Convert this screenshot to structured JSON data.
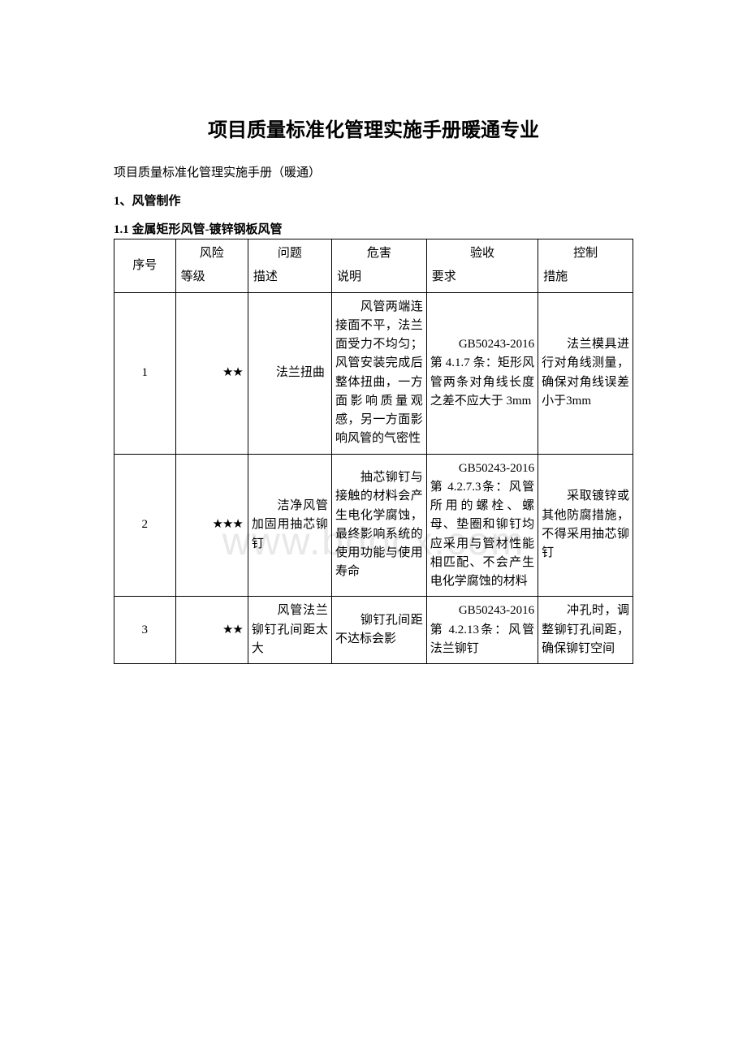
{
  "watermark_text": "www.bdocx.com",
  "header": {
    "title": "项目质量标准化管理实施手册暖通专业",
    "subtitle": "项目质量标准化管理实施手册（暖通）"
  },
  "section": {
    "num": "1",
    "label": "风管制作"
  },
  "subsection": {
    "num": "1.1",
    "label": "金属矩形风管-镀锌钢板风管"
  },
  "table": {
    "type": "table",
    "border_color": "#000000",
    "background_color": "#ffffff",
    "text_color": "#000000",
    "font_size_pt": 11,
    "columns": [
      {
        "header_top": "序号",
        "header_bottom": "",
        "width_pct": 11,
        "align": "center"
      },
      {
        "header_top": "风险",
        "header_bottom": "等级",
        "width_pct": 13,
        "align": "left"
      },
      {
        "header_top": "问题",
        "header_bottom": "描述",
        "width_pct": 15,
        "align": "left"
      },
      {
        "header_top": "危害",
        "header_bottom": "说明",
        "width_pct": 17,
        "align": "left"
      },
      {
        "header_top": "验收",
        "header_bottom": "要求",
        "width_pct": 20,
        "align": "left"
      },
      {
        "header_top": "控制",
        "header_bottom": "措施",
        "width_pct": 17,
        "align": "left"
      }
    ],
    "rows": [
      {
        "seq": "1",
        "risk": "★★",
        "problem": "　　法兰扭曲",
        "hazard": "　　风管两端连接面不平，法兰面受力不均匀；风管安装完成后整体扭曲，一方面影响质量观感，另一方面影响风管的气密性",
        "requirement": "　　GB50243-2016第 4.1.7 条：矩形风管两条对角线长度之差不应大于 3mm",
        "control": "　　法兰模具进行对角线测量，确保对角线误差小于3mm"
      },
      {
        "seq": "2",
        "risk": "★★★",
        "problem": "　　洁净风管加固用抽芯铆钉",
        "hazard": "　　抽芯铆钉与接触的材料会产生电化学腐蚀，最终影响系统的使用功能与使用寿命",
        "requirement": "　　GB50243-2016第 4.2.7.3条：风管所用的螺栓、螺母、垫圈和铆钉均应采用与管材性能相匹配、不会产生电化学腐蚀的材料",
        "control": "　　采取镀锌或其他防腐措施，不得采用抽芯铆钉"
      },
      {
        "seq": "3",
        "risk": "★★",
        "problem": "　　风管法兰铆钉孔间距太大",
        "hazard": "　　铆钉孔间距不达标会影",
        "requirement": "　　GB50243-2016第 4.2.13条：风管法兰铆钉",
        "control": "　　冲孔时，调整铆钉孔间距，确保铆钉空间"
      }
    ]
  }
}
